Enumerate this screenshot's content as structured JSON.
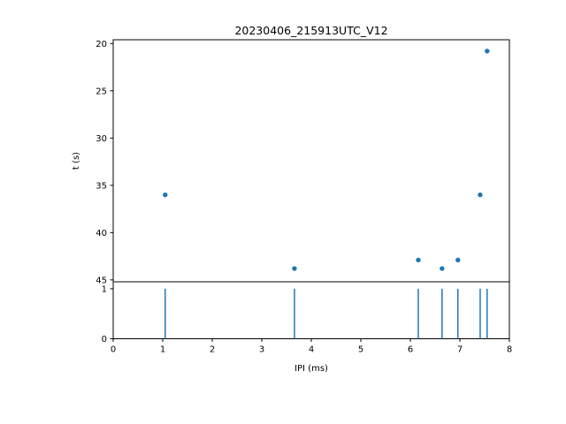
{
  "figure": {
    "background": "#ffffff",
    "spine_color": "#000000",
    "accent_color": "#1f77b4"
  },
  "chart_data": [
    {
      "type": "scatter",
      "title": "20230406_215913UTC_V12",
      "xlabel": "",
      "ylabel": "t (s)",
      "xlim": [
        0,
        8
      ],
      "ylim": [
        19.6,
        45.2
      ],
      "y_inverted": true,
      "yticks": [
        20,
        25,
        30,
        35,
        40,
        45
      ],
      "marker_color": "#1f77b4",
      "grid": false,
      "legend": null,
      "points": [
        {
          "x": 1.05,
          "y": 36.0
        },
        {
          "x": 3.66,
          "y": 43.8
        },
        {
          "x": 6.16,
          "y": 42.9
        },
        {
          "x": 6.64,
          "y": 43.8
        },
        {
          "x": 6.96,
          "y": 42.9
        },
        {
          "x": 7.41,
          "y": 36.0
        },
        {
          "x": 7.55,
          "y": 20.8
        }
      ]
    },
    {
      "type": "event-lines",
      "title": "",
      "xlabel": "IPI (ms)",
      "ylabel": "",
      "xlim": [
        0,
        8
      ],
      "ylim": [
        0,
        1.14
      ],
      "xticks": [
        0,
        1,
        2,
        3,
        4,
        5,
        6,
        7,
        8
      ],
      "yticks": [
        0,
        1
      ],
      "line_color": "#1f77b4",
      "line_ymin": 0,
      "line_ymax": 1,
      "grid": false,
      "events_x": [
        1.05,
        3.66,
        6.16,
        6.64,
        6.96,
        7.41,
        7.55
      ]
    }
  ]
}
